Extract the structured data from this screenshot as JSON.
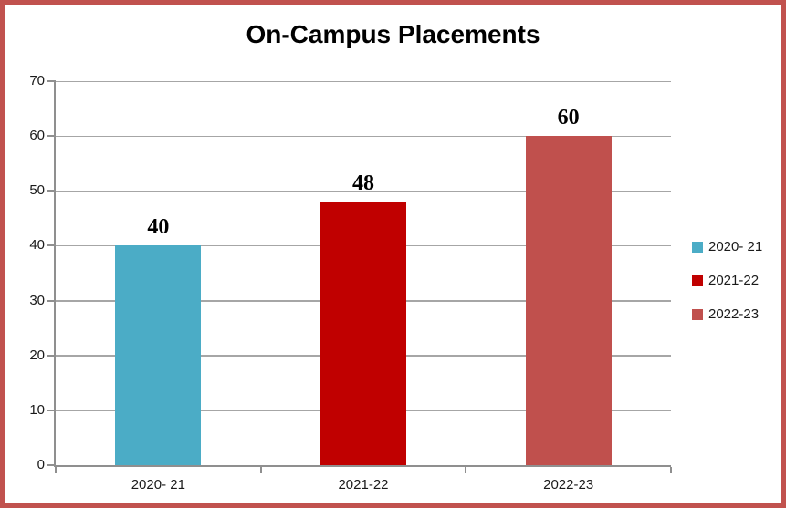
{
  "chart_data": {
    "type": "bar",
    "title": "On-Campus Placements",
    "categories": [
      "2020- 21",
      "2021-22",
      "2022-23"
    ],
    "series": [
      {
        "name": "2020- 21",
        "value": 40,
        "color": "#4BACC6"
      },
      {
        "name": "2021-22",
        "value": 48,
        "color": "#C00000"
      },
      {
        "name": "2022-23",
        "value": 60,
        "color": "#C0504D"
      }
    ],
    "values": [
      40,
      48,
      60
    ],
    "data_labels": [
      "40",
      "48",
      "60"
    ],
    "xlabel": "",
    "ylabel": "",
    "ylim": [
      0,
      70
    ],
    "yticks": [
      0,
      10,
      20,
      30,
      40,
      50,
      60,
      70
    ],
    "grid": true,
    "legend_position": "right",
    "legend_labels": [
      "2020- 21",
      "2021-22",
      "2022-23"
    ]
  },
  "style_colors": {
    "frame_border": "#C1524E",
    "gridline": "#A6A6A6",
    "axis": "#8F8F8F",
    "text": "#1A1A1A",
    "title_text": "#000000",
    "data_label_text": "#000000"
  }
}
